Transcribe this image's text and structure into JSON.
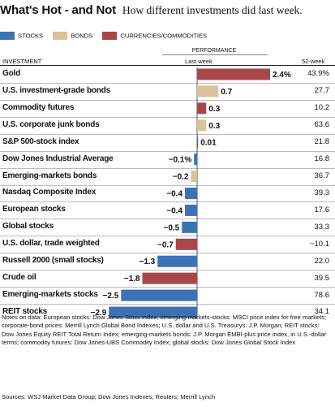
{
  "header": {
    "title": "What's Hot - and Not",
    "subtitle": "How different investments did last week."
  },
  "legend": [
    {
      "label": "STOCKS",
      "color": "#3b72b3"
    },
    {
      "label": "BONDS",
      "color": "#d9c49a"
    },
    {
      "label": "CURRENCIES/COMMODITIES",
      "color": "#a8464a"
    }
  ],
  "table_headers": {
    "investment": "INVESTMENT",
    "performance": "PERFORMANCE",
    "last_week": "Last week",
    "week52": "52-week"
  },
  "chart_data": {
    "type": "bar",
    "orientation": "horizontal",
    "title": "What's Hot - and Not",
    "subtitle": "How different investments did last week.",
    "value_unit": "%",
    "categories": [
      "Gold",
      "U.S. investment-grade bonds",
      "Commodity futures",
      "U.S. corporate junk bonds",
      "S&P 500-stock index",
      "Dow Jones Industrial Average",
      "Emerging-markets bonds",
      "Nasdaq Composite Index",
      "European stocks",
      "Global stocks",
      "U.S. dollar, trade weighted",
      "Russell 2000 (small stocks)",
      "Crude oil",
      "Emerging-markets stocks",
      "REIT stocks"
    ],
    "values": [
      2.4,
      0.7,
      0.3,
      0.3,
      0.01,
      -0.1,
      -0.2,
      -0.4,
      -0.4,
      -0.5,
      -0.7,
      -1.3,
      -1.8,
      -2.5,
      -2.9
    ],
    "value_labels": [
      "2.4%",
      "0.7",
      "0.3",
      "0.3",
      "0.01",
      "−0.1%",
      "−0.2",
      "−0.4",
      "−0.4",
      "−0.5",
      "−0.7",
      "−1.3",
      "−1.8",
      "−2.5",
      "−2.9"
    ],
    "groups": [
      "currencies/commodities",
      "bonds",
      "currencies/commodities",
      "bonds",
      "stocks",
      "stocks",
      "bonds",
      "stocks",
      "stocks",
      "stocks",
      "currencies/commodities",
      "stocks",
      "currencies/commodities",
      "stocks",
      "stocks"
    ],
    "week52": [
      "43.9%",
      "27.7",
      "10.2",
      "63.6",
      "21.8",
      "16.8",
      "36.7",
      "39.3",
      "17.6",
      "33.3",
      "−10.1",
      "22.0",
      "39.5",
      "78.6",
      "34.1"
    ],
    "xlim": [
      -3.0,
      2.5
    ],
    "grid": false,
    "legend_position": "top-left"
  },
  "notes": "Notes on data: European stocks: Dow Jones Stoxx index; emerging-markets-stocks: MSCI price index for free markets; corporate-bond prices: Merrill Lynch Global Bond Indexes; U.S. dollar and U.S. Treasurys: J.P. Morgan; REIT stocks: Dow Jones Equity REIT Total Return Index; emerging-markets bonds: J.P. Morgan EMBI-plus price index, in U.S.-dollar terms; commodity futures: Dow Jones-UBS Commodity Index; global stocks: Dow Jones Global Stock Index",
  "sources": "Sources: WSJ Market Data Group; Dow Jones Indexes; Reuters; Merrill Lynch"
}
